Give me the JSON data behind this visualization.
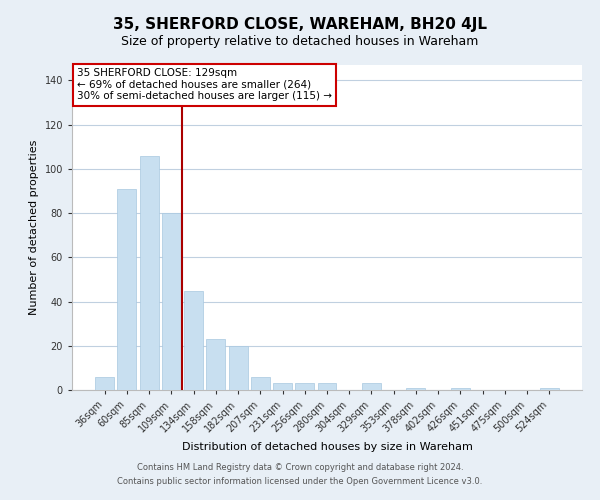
{
  "title": "35, SHERFORD CLOSE, WAREHAM, BH20 4JL",
  "subtitle": "Size of property relative to detached houses in Wareham",
  "xlabel": "Distribution of detached houses by size in Wareham",
  "ylabel": "Number of detached properties",
  "bar_color": "#c8dff0",
  "bar_edge_color": "#a8c8e0",
  "categories": [
    "36sqm",
    "60sqm",
    "85sqm",
    "109sqm",
    "134sqm",
    "158sqm",
    "182sqm",
    "207sqm",
    "231sqm",
    "256sqm",
    "280sqm",
    "304sqm",
    "329sqm",
    "353sqm",
    "378sqm",
    "402sqm",
    "426sqm",
    "451sqm",
    "475sqm",
    "500sqm",
    "524sqm"
  ],
  "values": [
    6,
    91,
    106,
    80,
    45,
    23,
    20,
    6,
    3,
    3,
    3,
    0,
    3,
    0,
    1,
    0,
    1,
    0,
    0,
    0,
    1
  ],
  "ylim": [
    0,
    147
  ],
  "yticks": [
    0,
    20,
    40,
    60,
    80,
    100,
    120,
    140
  ],
  "vline_index": 3.5,
  "vline_color": "#aa0000",
  "annotation_line1": "35 SHERFORD CLOSE: 129sqm",
  "annotation_line2": "← 69% of detached houses are smaller (264)",
  "annotation_line3": "30% of semi-detached houses are larger (115) →",
  "annotation_box_color": "#ffffff",
  "annotation_box_edge": "#cc0000",
  "footer_line1": "Contains HM Land Registry data © Crown copyright and database right 2024.",
  "footer_line2": "Contains public sector information licensed under the Open Government Licence v3.0.",
  "background_color": "#e8eff6",
  "plot_bg_color": "#ffffff",
  "grid_color": "#c0d0e0",
  "title_fontsize": 11,
  "subtitle_fontsize": 9,
  "axis_label_fontsize": 8,
  "tick_fontsize": 7,
  "footer_fontsize": 6
}
